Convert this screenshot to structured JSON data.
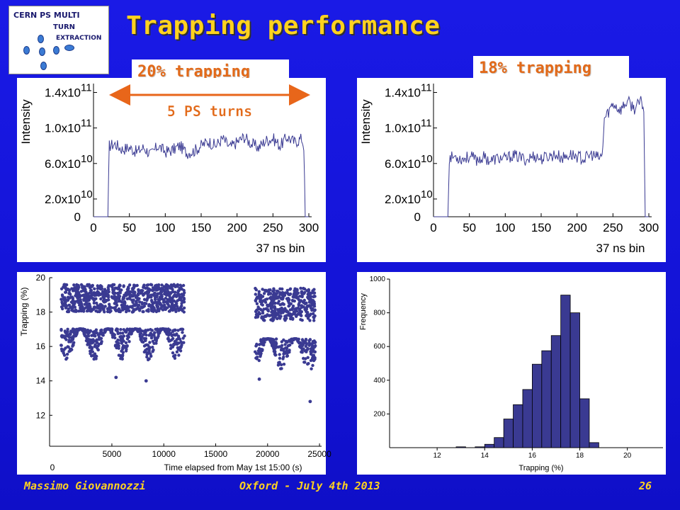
{
  "logo": {
    "line1": "CERN PS MULTI",
    "line2": "TURN",
    "line3": "EXTRACTION"
  },
  "title": "Trapping performance",
  "labels": {
    "left": "20% trapping",
    "right": "18% trapping",
    "annotation": "5 PS turns"
  },
  "footer": {
    "author": "Massimo Giovannozzi",
    "event": "Oxford - July 4th 2013",
    "page": "26"
  },
  "colors": {
    "background": "#1414d8",
    "title": "#ffd21f",
    "label_text": "#e26a1a",
    "data_series": "#3a3a92",
    "arrow": "#e8661a"
  },
  "chart_data": [
    {
      "type": "line",
      "xlabel": "37 ns bin",
      "ylabel": "Intensity",
      "xlim": [
        0,
        300
      ],
      "ylim": [
        0,
        150000000000.0
      ],
      "x_ticks": [
        0,
        50,
        100,
        150,
        200,
        250,
        300
      ],
      "x_tick_labels": [
        "0",
        "50",
        "100",
        "150",
        "200",
        "250",
        "300"
      ],
      "y_ticks": [
        0,
        20000000000.0,
        60000000000.0,
        100000000000.0,
        140000000000.0
      ],
      "y_tick_labels": [
        {
          "mantissa": "0",
          "exponent": ""
        },
        {
          "mantissa": "2.0x10",
          "exponent": "10"
        },
        {
          "mantissa": "6.0x10",
          "exponent": "10"
        },
        {
          "mantissa": "1.0x10",
          "exponent": "11"
        },
        {
          "mantissa": "1.4x10",
          "exponent": "11"
        }
      ],
      "series": [
        {
          "x": [
            0,
            20,
            22,
            30,
            40,
            50,
            60,
            70,
            80,
            90,
            100,
            110,
            120,
            130,
            140,
            150,
            160,
            170,
            180,
            190,
            200,
            210,
            220,
            230,
            240,
            250,
            260,
            270,
            280,
            290,
            293,
            295,
            300
          ],
          "values": [
            0,
            0,
            80000000000.0,
            82000000000.0,
            76000000000.0,
            78000000000.0,
            73000000000.0,
            78000000000.0,
            70000000000.0,
            80000000000.0,
            73000000000.0,
            75000000000.0,
            80000000000.0,
            72000000000.0,
            74000000000.0,
            80000000000.0,
            85000000000.0,
            80000000000.0,
            88000000000.0,
            78000000000.0,
            84000000000.0,
            90000000000.0,
            82000000000.0,
            78000000000.0,
            86000000000.0,
            88000000000.0,
            80000000000.0,
            90000000000.0,
            84000000000.0,
            88000000000.0,
            80000000000.0,
            0,
            0
          ]
        }
      ]
    },
    {
      "type": "line",
      "xlabel": "37 ns bin",
      "ylabel": "Intensity",
      "xlim": [
        0,
        300
      ],
      "ylim": [
        0,
        150000000000.0
      ],
      "x_ticks": [
        0,
        50,
        100,
        150,
        200,
        250,
        300
      ],
      "x_tick_labels": [
        "0",
        "50",
        "100",
        "150",
        "200",
        "250",
        "300"
      ],
      "y_ticks": [
        0,
        20000000000.0,
        60000000000.0,
        100000000000.0,
        140000000000.0
      ],
      "y_tick_labels": [
        {
          "mantissa": "0",
          "exponent": ""
        },
        {
          "mantissa": "2.0x10",
          "exponent": "10"
        },
        {
          "mantissa": "6.0x10",
          "exponent": "10"
        },
        {
          "mantissa": "1.0x10",
          "exponent": "11"
        },
        {
          "mantissa": "1.4x10",
          "exponent": "11"
        }
      ],
      "series": [
        {
          "x": [
            0,
            20,
            22,
            30,
            40,
            50,
            60,
            70,
            80,
            90,
            100,
            110,
            120,
            130,
            140,
            150,
            160,
            170,
            180,
            190,
            200,
            210,
            220,
            230,
            235,
            238,
            245,
            250,
            260,
            270,
            280,
            290,
            293,
            295,
            300
          ],
          "values": [
            0,
            0,
            66000000000.0,
            68000000000.0,
            65000000000.0,
            68000000000.0,
            64000000000.0,
            67000000000.0,
            63000000000.0,
            66000000000.0,
            65000000000.0,
            69000000000.0,
            67000000000.0,
            64000000000.0,
            69000000000.0,
            65000000000.0,
            68000000000.0,
            70000000000.0,
            66000000000.0,
            70000000000.0,
            68000000000.0,
            65000000000.0,
            70000000000.0,
            66000000000.0,
            68000000000.0,
            110000000000.0,
            120000000000.0,
            128000000000.0,
            120000000000.0,
            130000000000.0,
            122000000000.0,
            130000000000.0,
            120000000000.0,
            0,
            0
          ]
        }
      ]
    },
    {
      "type": "scatter",
      "xlabel": "Time elapsed from May 1st 15:00 (s)",
      "ylabel": "Trapping (%)",
      "xlim": [
        -1000,
        25200
      ],
      "ylim": [
        10.2,
        20
      ],
      "x_ticks": [
        5000,
        10000,
        15000,
        20000,
        25000
      ],
      "x_tick_labels": [
        "5000",
        "10000",
        "15000",
        "20000",
        "25000"
      ],
      "x_origin_label": "0",
      "y_ticks": [
        12,
        14,
        16,
        18,
        20
      ],
      "y_tick_labels": [
        "12",
        "14",
        "16",
        "18",
        "20"
      ],
      "clusters": [
        {
          "x_start": 100,
          "x_end": 12000,
          "y_min": 15.2,
          "y_max": 19.6,
          "y_mean": 18.0
        },
        {
          "x_start": 18800,
          "x_end": 24600,
          "y_min": 14.5,
          "y_max": 19.4,
          "y_mean": 17.5
        }
      ],
      "outliers": [
        {
          "x": 5400,
          "y": 14.2
        },
        {
          "x": 8300,
          "y": 14.0
        },
        {
          "x": 19200,
          "y": 14.1
        },
        {
          "x": 24100,
          "y": 12.8
        }
      ]
    },
    {
      "type": "bar",
      "xlabel": "Trapping (%)",
      "ylabel": "Frequency",
      "xlim": [
        10,
        21.5
      ],
      "ylim": [
        0,
        1000
      ],
      "x_ticks": [
        12,
        14,
        16,
        18,
        20
      ],
      "x_tick_labels": [
        "12",
        "14",
        "16",
        "18",
        "20"
      ],
      "y_ticks": [
        200,
        400,
        600,
        800,
        1000
      ],
      "y_tick_labels": [
        "200",
        "400",
        "600",
        "800",
        "1000"
      ],
      "bin_width": 0.4,
      "bins": [
        12.8,
        13.6,
        14.0,
        14.4,
        14.8,
        15.2,
        15.6,
        16.0,
        16.4,
        16.8,
        17.2,
        17.6,
        18.0,
        18.4,
        18.8,
        19.2
      ],
      "values": [
        5,
        5,
        20,
        60,
        170,
        255,
        345,
        495,
        575,
        665,
        905,
        800,
        290,
        30,
        0,
        0
      ]
    }
  ]
}
